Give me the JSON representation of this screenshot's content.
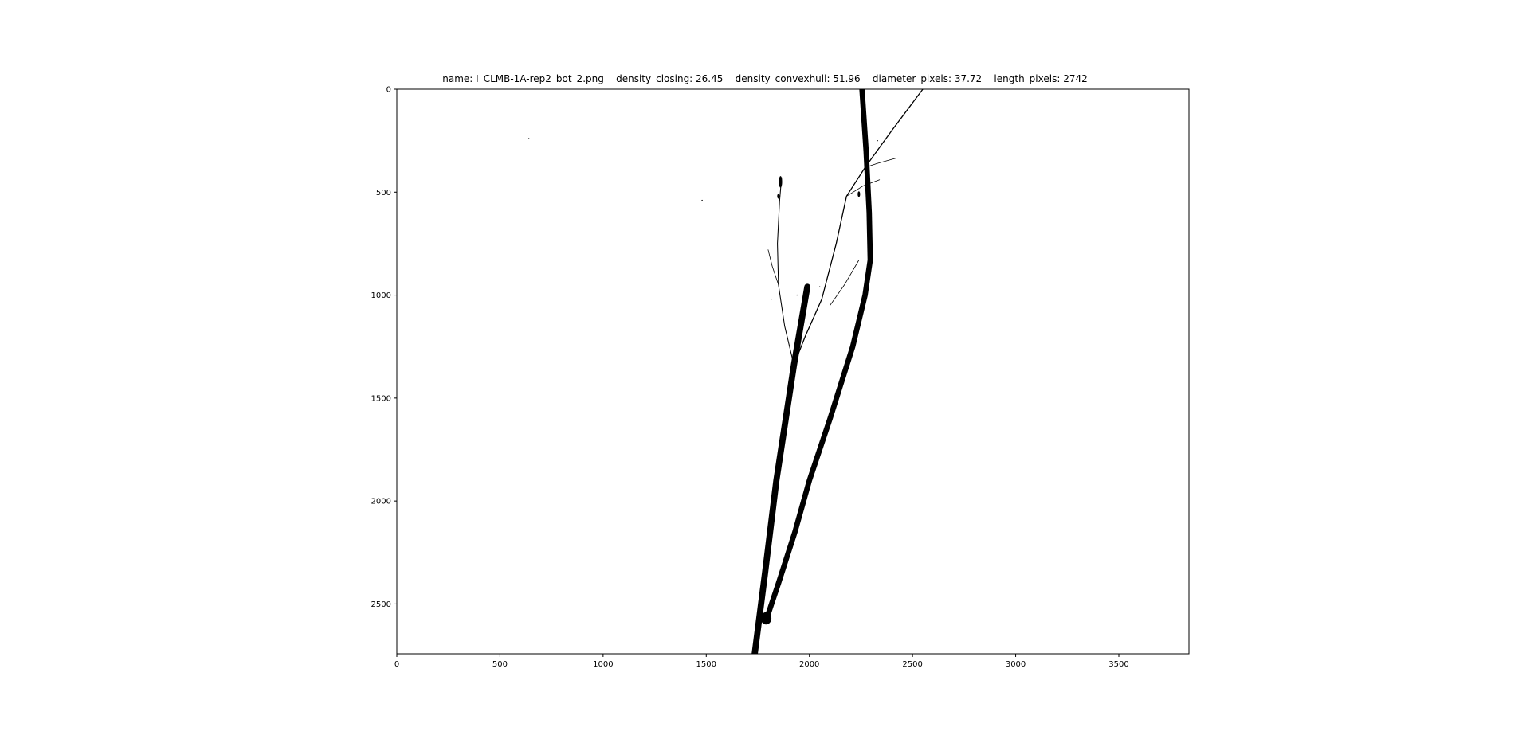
{
  "figure": {
    "title": "name: I_CLMB-1A-rep2_bot_2.png    density_closing: 26.45    density_convexhull: 51.96    diameter_pixels: 37.72    length_pixels: 2742"
  },
  "chart_data": {
    "type": "image",
    "xlim": [
      0,
      3840
    ],
    "ylim": [
      2742,
      0
    ],
    "xticks": [
      0,
      500,
      1000,
      1500,
      2000,
      2500,
      3000,
      3500
    ],
    "yticks": [
      0,
      500,
      1000,
      1500,
      2000,
      2500
    ],
    "grid": false,
    "colors": {
      "foreground": "#000000",
      "background": "#ffffff"
    },
    "strokes": [
      {
        "points": [
          [
            1735,
            2742
          ],
          [
            1785,
            2350
          ],
          [
            1840,
            1900
          ],
          [
            1925,
            1340
          ],
          [
            1990,
            960
          ]
        ],
        "width": 30
      },
      {
        "points": [
          [
            2255,
            0
          ],
          [
            2275,
            300
          ],
          [
            2290,
            600
          ],
          [
            2295,
            830
          ],
          [
            2270,
            1000
          ],
          [
            2210,
            1250
          ],
          [
            2100,
            1600
          ],
          [
            2000,
            1900
          ],
          [
            1930,
            2150
          ],
          [
            1850,
            2400
          ],
          [
            1790,
            2580
          ]
        ],
        "width": 26
      },
      {
        "points": [
          [
            1925,
            1340
          ],
          [
            1980,
            1200
          ],
          [
            2060,
            1020
          ],
          [
            2130,
            750
          ],
          [
            2180,
            520
          ],
          [
            2270,
            380
          ],
          [
            2400,
            200
          ],
          [
            2550,
            0
          ]
        ],
        "width": 5
      },
      {
        "points": [
          [
            1925,
            1340
          ],
          [
            1880,
            1150
          ],
          [
            1850,
            950
          ],
          [
            1845,
            750
          ],
          [
            1855,
            550
          ],
          [
            1865,
            430
          ]
        ],
        "width": 4
      },
      {
        "points": [
          [
            2270,
            380
          ],
          [
            2330,
            360
          ],
          [
            2420,
            335
          ]
        ],
        "width": 2
      },
      {
        "points": [
          [
            2180,
            520
          ],
          [
            2260,
            470
          ],
          [
            2340,
            440
          ]
        ],
        "width": 2
      },
      {
        "points": [
          [
            2100,
            1050
          ],
          [
            2170,
            950
          ],
          [
            2240,
            830
          ]
        ],
        "width": 1.5
      },
      {
        "points": [
          [
            1850,
            950
          ],
          [
            1820,
            860
          ],
          [
            1800,
            780
          ]
        ],
        "width": 1.5
      }
    ],
    "blobs": [
      {
        "x": 1860,
        "y": 450,
        "rx": 8,
        "ry": 28
      },
      {
        "x": 1850,
        "y": 520,
        "rx": 6,
        "ry": 12
      },
      {
        "x": 2240,
        "y": 510,
        "rx": 6,
        "ry": 14
      },
      {
        "x": 1790,
        "y": 2570,
        "rx": 26,
        "ry": 30
      }
    ],
    "specks": [
      {
        "x": 640,
        "y": 240
      },
      {
        "x": 1480,
        "y": 540
      },
      {
        "x": 1940,
        "y": 1000
      },
      {
        "x": 1960,
        "y": 1080
      },
      {
        "x": 2050,
        "y": 960
      },
      {
        "x": 2330,
        "y": 250
      },
      {
        "x": 1815,
        "y": 1020
      }
    ]
  }
}
